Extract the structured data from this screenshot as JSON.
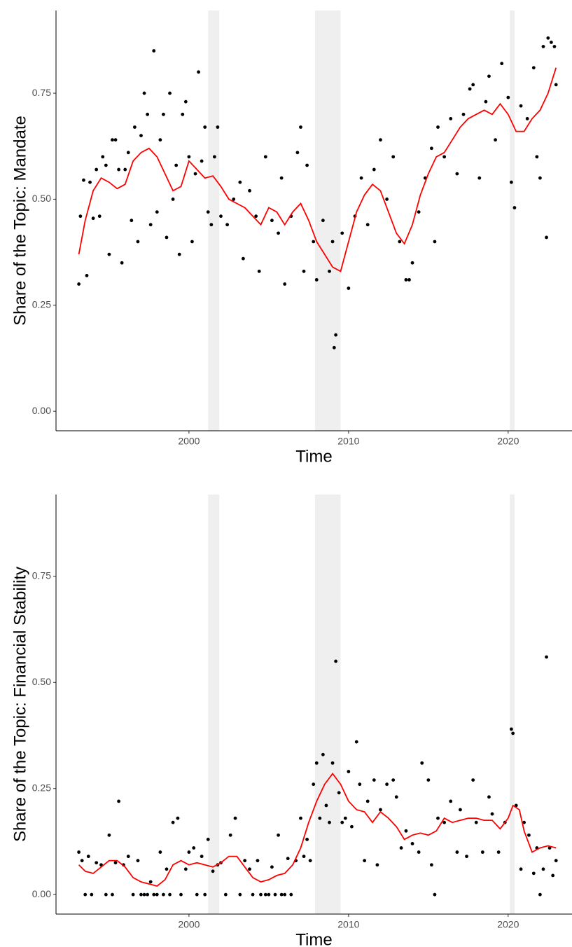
{
  "chart_data": [
    {
      "type": "scatter",
      "x_label": "Time",
      "y_label": "Share of the Topic: Mandate",
      "xlim": [
        1991.67,
        2024
      ],
      "ylim": [
        -0.046,
        0.945
      ],
      "xticks": [
        2000,
        2010,
        2020
      ],
      "yticks": [
        {
          "value": 0,
          "label": "0.00"
        },
        {
          "value": 0.25,
          "label": "0.25"
        },
        {
          "value": 0.5,
          "label": "0.50"
        },
        {
          "value": 0.75,
          "label": "0.75"
        }
      ],
      "shaded_ranges": [
        [
          2001.2,
          2001.9
        ],
        [
          2007.9,
          2009.5
        ],
        [
          2020.1,
          2020.4
        ]
      ],
      "shade_color": "#efefef",
      "series": [
        {
          "type": "scatter",
          "color": "#000000",
          "x": [
            1993.1,
            1993.2,
            1993.4,
            1993.6,
            1993.8,
            1994.0,
            1994.2,
            1994.4,
            1994.6,
            1994.8,
            1995.0,
            1995.2,
            1995.4,
            1995.6,
            1995.8,
            1996.0,
            1996.2,
            1996.4,
            1996.6,
            1996.8,
            1997.0,
            1997.2,
            1997.4,
            1997.6,
            1997.8,
            1998.0,
            1998.2,
            1998.4,
            1998.6,
            1998.8,
            1999.0,
            1999.2,
            1999.4,
            1999.6,
            1999.8,
            2000.0,
            2000.2,
            2000.4,
            2000.6,
            2000.8,
            2001.0,
            2001.2,
            2001.4,
            2001.6,
            2001.8,
            2002.0,
            2002.4,
            2002.8,
            2003.2,
            2003.4,
            2003.8,
            2004.2,
            2004.4,
            2004.8,
            2005.2,
            2005.6,
            2005.8,
            2006.0,
            2006.4,
            2006.8,
            2007.0,
            2007.2,
            2007.4,
            2007.8,
            2008.0,
            2008.4,
            2008.8,
            2009.0,
            2009.1,
            2009.2,
            2009.6,
            2010.0,
            2010.4,
            2010.8,
            2011.2,
            2011.6,
            2012.0,
            2012.4,
            2012.8,
            2013.2,
            2013.6,
            2013.8,
            2014.0,
            2014.4,
            2014.8,
            2015.2,
            2015.4,
            2015.6,
            2016.0,
            2016.4,
            2016.8,
            2017.2,
            2017.6,
            2017.8,
            2018.2,
            2018.6,
            2018.8,
            2019.2,
            2019.6,
            2020.0,
            2020.2,
            2020.4,
            2020.8,
            2021.2,
            2021.6,
            2021.8,
            2022.0,
            2022.2,
            2022.4,
            2022.5,
            2022.7,
            2022.9,
            2023.0
          ],
          "values": [
            0.3,
            0.46,
            0.545,
            0.32,
            0.54,
            0.455,
            0.57,
            0.46,
            0.6,
            0.58,
            0.37,
            0.64,
            0.64,
            0.57,
            0.35,
            0.57,
            0.61,
            0.45,
            0.67,
            0.4,
            0.65,
            0.75,
            0.7,
            0.44,
            0.85,
            0.47,
            0.64,
            0.7,
            0.41,
            0.75,
            0.5,
            0.58,
            0.37,
            0.7,
            0.73,
            0.6,
            0.4,
            0.56,
            0.8,
            0.59,
            0.67,
            0.47,
            0.44,
            0.6,
            0.67,
            0.46,
            0.44,
            0.5,
            0.54,
            0.36,
            0.52,
            0.46,
            0.33,
            0.6,
            0.45,
            0.42,
            0.55,
            0.3,
            0.46,
            0.61,
            0.67,
            0.33,
            0.58,
            0.4,
            0.31,
            0.45,
            0.33,
            0.4,
            0.15,
            0.18,
            0.42,
            0.29,
            0.46,
            0.55,
            0.44,
            0.57,
            0.64,
            0.5,
            0.6,
            0.4,
            0.31,
            0.31,
            0.35,
            0.47,
            0.55,
            0.62,
            0.4,
            0.67,
            0.6,
            0.69,
            0.56,
            0.7,
            0.76,
            0.77,
            0.55,
            0.73,
            0.79,
            0.64,
            0.82,
            0.74,
            0.54,
            0.48,
            0.72,
            0.69,
            0.81,
            0.6,
            0.55,
            0.86,
            0.41,
            0.88,
            0.87,
            0.86,
            0.77
          ]
        },
        {
          "type": "line",
          "color": "#ff0000",
          "x": [
            1993.1,
            1993.5,
            1994.0,
            1994.5,
            1995.0,
            1995.5,
            1996.0,
            1996.5,
            1997.0,
            1997.5,
            1998.0,
            1998.5,
            1999.0,
            1999.5,
            2000.0,
            2000.5,
            2001.0,
            2001.5,
            2002.0,
            2002.5,
            2003.0,
            2003.5,
            2004.0,
            2004.5,
            2005.0,
            2005.5,
            2006.0,
            2006.5,
            2007.0,
            2007.5,
            2008.0,
            2008.5,
            2009.0,
            2009.5,
            2010.0,
            2010.5,
            2011.0,
            2011.5,
            2012.0,
            2012.5,
            2013.0,
            2013.5,
            2014.0,
            2014.5,
            2015.0,
            2015.5,
            2016.0,
            2016.5,
            2017.0,
            2017.5,
            2018.0,
            2018.5,
            2019.0,
            2019.5,
            2020.0,
            2020.5,
            2021.0,
            2021.5,
            2022.0,
            2022.5,
            2023.0
          ],
          "values": [
            0.37,
            0.45,
            0.52,
            0.55,
            0.54,
            0.525,
            0.535,
            0.59,
            0.61,
            0.62,
            0.6,
            0.56,
            0.52,
            0.53,
            0.59,
            0.57,
            0.55,
            0.555,
            0.53,
            0.5,
            0.49,
            0.48,
            0.46,
            0.44,
            0.48,
            0.47,
            0.44,
            0.47,
            0.49,
            0.45,
            0.4,
            0.37,
            0.34,
            0.33,
            0.4,
            0.47,
            0.51,
            0.535,
            0.52,
            0.47,
            0.42,
            0.395,
            0.44,
            0.51,
            0.56,
            0.6,
            0.61,
            0.64,
            0.67,
            0.69,
            0.7,
            0.71,
            0.7,
            0.725,
            0.7,
            0.66,
            0.66,
            0.69,
            0.71,
            0.75,
            0.81
          ]
        }
      ]
    },
    {
      "type": "scatter",
      "x_label": "Time",
      "y_label": "Share of the Topic: Financial Stability",
      "xlim": [
        1991.67,
        2024
      ],
      "ylim": [
        -0.046,
        0.943
      ],
      "xticks": [
        2000,
        2010,
        2020
      ],
      "yticks": [
        {
          "value": 0,
          "label": "0.00"
        },
        {
          "value": 0.25,
          "label": "0.25"
        },
        {
          "value": 0.5,
          "label": "0.50"
        },
        {
          "value": 0.75,
          "label": "0.75"
        }
      ],
      "shaded_ranges": [
        [
          2001.2,
          2001.9
        ],
        [
          2007.9,
          2009.5
        ],
        [
          2020.1,
          2020.4
        ]
      ],
      "shade_color": "#efefef",
      "series": [
        {
          "type": "scatter",
          "color": "#000000",
          "x": [
            1993.1,
            1993.3,
            1993.5,
            1993.7,
            1993.9,
            1994.2,
            1994.5,
            1994.8,
            1995.0,
            1995.2,
            1995.4,
            1995.6,
            1995.9,
            1996.2,
            1996.5,
            1996.8,
            1997.0,
            1997.2,
            1997.4,
            1997.6,
            1997.8,
            1998.0,
            1998.2,
            1998.4,
            1998.6,
            1998.8,
            1999.0,
            1999.3,
            1999.5,
            1999.8,
            2000.0,
            2000.3,
            2000.5,
            2000.8,
            2001.0,
            2001.2,
            2001.5,
            2001.8,
            2002.0,
            2002.3,
            2002.6,
            2002.9,
            2003.2,
            2003.5,
            2003.8,
            2004.0,
            2004.3,
            2004.5,
            2004.8,
            2005.0,
            2005.2,
            2005.4,
            2005.6,
            2005.8,
            2006.0,
            2006.2,
            2006.4,
            2006.7,
            2007.0,
            2007.2,
            2007.4,
            2007.6,
            2007.8,
            2008.0,
            2008.2,
            2008.4,
            2008.6,
            2008.8,
            2009.0,
            2009.2,
            2009.4,
            2009.6,
            2009.8,
            2010.0,
            2010.2,
            2010.5,
            2010.7,
            2011.0,
            2011.2,
            2011.6,
            2011.8,
            2012.0,
            2012.4,
            2012.8,
            2013.0,
            2013.3,
            2013.6,
            2014.0,
            2014.4,
            2014.6,
            2015.0,
            2015.2,
            2015.4,
            2015.6,
            2016.0,
            2016.4,
            2016.8,
            2017.0,
            2017.4,
            2017.8,
            2018.0,
            2018.4,
            2018.8,
            2019.0,
            2019.4,
            2019.8,
            2020.2,
            2020.3,
            2020.5,
            2020.8,
            2021.0,
            2021.3,
            2021.6,
            2021.8,
            2022.0,
            2022.2,
            2022.4,
            2022.6,
            2022.8,
            2023.0
          ],
          "values": [
            0.1,
            0.08,
            0,
            0.09,
            0,
            0.075,
            0.07,
            0,
            0.14,
            0,
            0.075,
            0.22,
            0.07,
            0.09,
            0,
            0.08,
            0,
            0,
            0,
            0.03,
            0,
            0,
            0.1,
            0,
            0.06,
            0,
            0.17,
            0.18,
            0,
            0.06,
            0.1,
            0.11,
            0,
            0.09,
            0,
            0.13,
            0.055,
            0.07,
            0.075,
            0,
            0.14,
            0.18,
            0,
            0.08,
            0.06,
            0,
            0.08,
            0,
            0,
            0,
            0.065,
            0,
            0.14,
            0,
            0,
            0.085,
            0,
            0.08,
            0.18,
            0.09,
            0.13,
            0.08,
            0.26,
            0.31,
            0.18,
            0.33,
            0.21,
            0.17,
            0.31,
            0.55,
            0.24,
            0.17,
            0.18,
            0.29,
            0.16,
            0.36,
            0.26,
            0.08,
            0.22,
            0.27,
            0.07,
            0.2,
            0.26,
            0.27,
            0.23,
            0.11,
            0.15,
            0.12,
            0.1,
            0.31,
            0.27,
            0.07,
            0,
            0.18,
            0.17,
            0.22,
            0.1,
            0.2,
            0.09,
            0.27,
            0.17,
            0.1,
            0.23,
            0.19,
            0.1,
            0.17,
            0.39,
            0.38,
            0.21,
            0.06,
            0.17,
            0.14,
            0.05,
            0.11,
            0,
            0.06,
            0.56,
            0.11,
            0.045,
            0.08
          ]
        },
        {
          "type": "line",
          "color": "#ff0000",
          "x": [
            1993.1,
            1993.5,
            1994.0,
            1994.5,
            1995.0,
            1995.5,
            1996.0,
            1996.5,
            1997.0,
            1997.5,
            1998.0,
            1998.5,
            1999.0,
            1999.5,
            2000.0,
            2000.5,
            2001.0,
            2001.5,
            2002.0,
            2002.5,
            2003.0,
            2003.5,
            2004.0,
            2004.5,
            2005.0,
            2005.5,
            2006.0,
            2006.5,
            2007.0,
            2007.5,
            2008.0,
            2008.5,
            2009.0,
            2009.5,
            2010.0,
            2010.5,
            2011.0,
            2011.5,
            2012.0,
            2012.5,
            2013.0,
            2013.5,
            2014.0,
            2014.5,
            2015.0,
            2015.5,
            2016.0,
            2016.5,
            2017.0,
            2017.5,
            2018.0,
            2018.5,
            2019.0,
            2019.5,
            2020.0,
            2020.3,
            2020.7,
            2021.0,
            2021.5,
            2022.0,
            2022.5,
            2023.0
          ],
          "values": [
            0.07,
            0.055,
            0.05,
            0.065,
            0.08,
            0.08,
            0.065,
            0.04,
            0.03,
            0.025,
            0.02,
            0.035,
            0.07,
            0.08,
            0.07,
            0.075,
            0.07,
            0.065,
            0.075,
            0.09,
            0.09,
            0.065,
            0.04,
            0.03,
            0.035,
            0.045,
            0.05,
            0.07,
            0.11,
            0.17,
            0.22,
            0.26,
            0.285,
            0.26,
            0.22,
            0.2,
            0.195,
            0.17,
            0.195,
            0.18,
            0.16,
            0.13,
            0.14,
            0.145,
            0.14,
            0.15,
            0.18,
            0.17,
            0.175,
            0.18,
            0.18,
            0.175,
            0.175,
            0.155,
            0.18,
            0.21,
            0.2,
            0.15,
            0.1,
            0.11,
            0.115,
            0.11
          ]
        }
      ]
    }
  ]
}
